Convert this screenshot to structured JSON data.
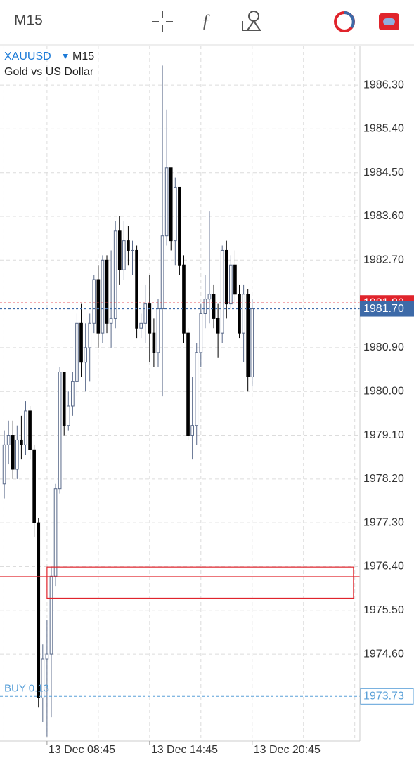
{
  "chart_data": {
    "type": "candlestick",
    "timeframe_button": "M15",
    "symbol": "XAUUSD",
    "timeframe": "M15",
    "description": "Gold vs US Dollar",
    "xlim": [
      -1,
      83.2
    ],
    "ylim": [
      1972.81,
      1987.11
    ],
    "xticks": [
      {
        "value": 10,
        "label": "13 Dec 08:45"
      },
      {
        "value": 34,
        "label": "13 Dec 14:45"
      },
      {
        "value": 58,
        "label": "13 Dec 20:45"
      }
    ],
    "xgrid": [
      -0.1,
      22,
      46,
      70,
      82
    ],
    "yticks": [
      {
        "value": 1986.3,
        "label": "1986.30"
      },
      {
        "value": 1985.4,
        "label": "1985.40"
      },
      {
        "value": 1984.5,
        "label": "1984.50"
      },
      {
        "value": 1983.6,
        "label": "1983.60"
      },
      {
        "value": 1982.7,
        "label": "1982.70"
      },
      {
        "value": 1980.9,
        "label": "1980.90"
      },
      {
        "value": 1980.0,
        "label": "1980.00"
      },
      {
        "value": 1979.1,
        "label": "1979.10"
      },
      {
        "value": 1978.2,
        "label": "1978.20"
      },
      {
        "value": 1977.3,
        "label": "1977.30"
      },
      {
        "value": 1976.4,
        "label": "1976.40"
      },
      {
        "value": 1975.5,
        "label": "1975.50"
      },
      {
        "value": 1974.6,
        "label": "1974.60"
      }
    ],
    "grid": true,
    "up_color": "#5a6a8a",
    "down_color": "#000000",
    "open": [
      1978.1,
      1978.9,
      1979.1,
      1978.4,
      1979.0,
      1978.9,
      1979.6,
      1978.8,
      1977.3,
      1973.7,
      1974.5,
      1974.6,
      1976.2,
      1978.0,
      1980.4,
      1979.3,
      1979.7,
      1980.2,
      1981.4,
      1980.6,
      1980.9,
      1981.4,
      1982.3,
      1981.2,
      1982.7,
      1981.4,
      1981.5,
      1983.3,
      1982.5,
      1983.1,
      1982.9,
      1982.9,
      1981.3,
      1981.4,
      1981.8,
      1981.2,
      1980.8,
      1981.7,
      1983.2,
      1984.6,
      1983.1,
      1984.2,
      1982.6,
      1981.2,
      1979.1,
      1979.3,
      1980.8,
      1981.6,
      1981.9,
      1982.0,
      1981.5,
      1981.2,
      1982.9,
      1981.8,
      1982.6,
      1982.0,
      1981.2,
      1982.0,
      1980.3
    ],
    "high": [
      1979.2,
      1979.4,
      1979.4,
      1979.3,
      1979.5,
      1979.8,
      1979.7,
      1978.9,
      1977.4,
      1974.8,
      1975.3,
      1976.4,
      1978.1,
      1980.5,
      1980.4,
      1980.0,
      1980.4,
      1981.6,
      1981.8,
      1981.4,
      1981.6,
      1982.4,
      1982.6,
      1982.8,
      1982.8,
      1982.9,
      1983.5,
      1983.6,
      1983.5,
      1983.4,
      1983.1,
      1983.0,
      1981.6,
      1982.2,
      1982.4,
      1981.5,
      1981.9,
      1986.7,
      1985.8,
      1984.6,
      1984.4,
      1984.2,
      1982.8,
      1981.3,
      1980.3,
      1981.0,
      1981.8,
      1982.4,
      1983.7,
      1982.2,
      1981.8,
      1983.0,
      1983.1,
      1982.8,
      1982.9,
      1982.2,
      1982.2,
      1982.1,
      1981.9
    ],
    "low": [
      1977.8,
      1978.5,
      1978.2,
      1978.2,
      1978.6,
      1978.7,
      1978.6,
      1977.0,
      1973.5,
      1973.2,
      1972.9,
      1973.3,
      1976.0,
      1977.9,
      1979.1,
      1979.2,
      1979.5,
      1979.9,
      1980.3,
      1980.0,
      1980.2,
      1981.2,
      1980.9,
      1981.0,
      1981.2,
      1980.9,
      1981.3,
      1982.2,
      1982.3,
      1982.6,
      1982.4,
      1981.1,
      1981.1,
      1981.0,
      1980.6,
      1980.5,
      1980.5,
      1979.9,
      1983.0,
      1982.9,
      1982.6,
      1982.4,
      1981.0,
      1979.0,
      1978.6,
      1978.9,
      1980.5,
      1981.3,
      1981.4,
      1981.3,
      1980.7,
      1981.0,
      1981.5,
      1981.7,
      1981.8,
      1981.1,
      1980.6,
      1980.0,
      1980.1
    ],
    "close": [
      1978.9,
      1979.1,
      1978.4,
      1979.0,
      1978.9,
      1979.6,
      1978.8,
      1977.3,
      1973.7,
      1974.5,
      1974.6,
      1976.2,
      1978.0,
      1980.4,
      1979.3,
      1979.7,
      1980.2,
      1981.4,
      1980.6,
      1980.9,
      1981.4,
      1982.3,
      1981.2,
      1982.7,
      1981.4,
      1981.5,
      1983.3,
      1982.5,
      1983.1,
      1982.9,
      1982.9,
      1981.3,
      1981.4,
      1981.8,
      1981.2,
      1980.8,
      1981.7,
      1983.2,
      1984.6,
      1983.1,
      1984.2,
      1982.6,
      1981.2,
      1979.1,
      1979.3,
      1980.8,
      1981.6,
      1981.9,
      1982.0,
      1981.5,
      1981.2,
      1982.9,
      1981.8,
      1982.6,
      1982.0,
      1981.2,
      1982.0,
      1980.3,
      1981.7
    ],
    "ask_line": {
      "value": 1981.82,
      "label": "1981.82",
      "color": "#e0242c"
    },
    "bid_line": {
      "value": 1981.7,
      "label": "1981.70",
      "color": "#3d6aa8"
    },
    "position": {
      "label": "BUY 0.13",
      "value": 1973.73,
      "price_label": "1973.73",
      "color": "#5aa0d8"
    },
    "level_line": {
      "value": 1976.19,
      "color": "#e0242c"
    },
    "zone": {
      "x": [
        10,
        81.7
      ],
      "y": [
        1975.75,
        1976.39
      ],
      "color": "#e0242c"
    }
  }
}
